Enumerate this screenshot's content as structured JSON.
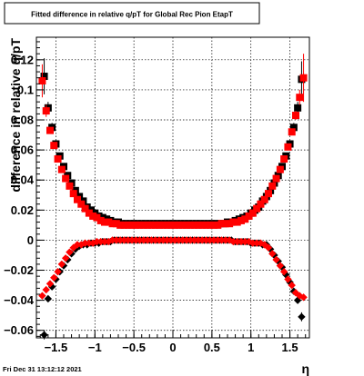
{
  "timestamp": "Fri Dec 31 13:12:12 2021",
  "colors": {
    "background": "#ffffff",
    "frame": "#000000",
    "grid": "#000000",
    "series_black": "#000000",
    "series_red": "#ff0000"
  },
  "chart_data": {
    "type": "scatter",
    "title": "Fitted difference in relative q/pT for Global Rec Pion EtapT",
    "xlabel": "η",
    "ylabel": "difference in relative q/pT",
    "xlim": [
      -1.75,
      1.75
    ],
    "ylim": [
      -0.065,
      0.135
    ],
    "grid": true,
    "legend": "none",
    "x_ticks": [
      {
        "value": -1.5,
        "label": "−1.5"
      },
      {
        "value": -1.0,
        "label": "−1"
      },
      {
        "value": -0.5,
        "label": "−0.5"
      },
      {
        "value": 0.0,
        "label": "0"
      },
      {
        "value": 0.5,
        "label": "0.5"
      },
      {
        "value": 1.0,
        "label": "1"
      },
      {
        "value": 1.5,
        "label": "1.5"
      }
    ],
    "y_ticks": [
      {
        "value": -0.06,
        "label": "−0.06"
      },
      {
        "value": -0.04,
        "label": "−0.04"
      },
      {
        "value": -0.02,
        "label": "−0.02"
      },
      {
        "value": 0.0,
        "label": "0"
      },
      {
        "value": 0.02,
        "label": "0.02"
      },
      {
        "value": 0.04,
        "label": "0.04"
      },
      {
        "value": 0.06,
        "label": "0.06"
      },
      {
        "value": 0.08,
        "label": "0.08"
      },
      {
        "value": 0.1,
        "label": "0.1"
      },
      {
        "value": 0.12,
        "label": "0.12"
      }
    ],
    "series": [
      {
        "group": "upper",
        "marker": "square",
        "color": "#000000",
        "x": [
          -1.65,
          -1.6,
          -1.55,
          -1.5,
          -1.45,
          -1.4,
          -1.35,
          -1.3,
          -1.25,
          -1.2,
          -1.15,
          -1.1,
          -1.05,
          -1.0,
          -0.95,
          -0.9,
          -0.85,
          -0.8,
          -0.75,
          -0.7,
          -0.65,
          -0.6,
          -0.55,
          -0.5,
          -0.45,
          -0.4,
          -0.35,
          -0.3,
          -0.25,
          -0.2,
          -0.15,
          -0.1,
          -0.05,
          0.0,
          0.05,
          0.1,
          0.15,
          0.2,
          0.25,
          0.3,
          0.35,
          0.4,
          0.45,
          0.5,
          0.55,
          0.6,
          0.65,
          0.7,
          0.75,
          0.8,
          0.85,
          0.9,
          0.95,
          1.0,
          1.05,
          1.1,
          1.15,
          1.2,
          1.25,
          1.3,
          1.35,
          1.4,
          1.45,
          1.5,
          1.55,
          1.6,
          1.65
        ],
        "y": [
          0.109,
          0.088,
          0.075,
          0.064,
          0.056,
          0.049,
          0.043,
          0.038,
          0.033,
          0.029,
          0.026,
          0.022,
          0.02,
          0.018,
          0.016,
          0.015,
          0.014,
          0.013,
          0.012,
          0.012,
          0.011,
          0.011,
          0.011,
          0.011,
          0.011,
          0.011,
          0.011,
          0.011,
          0.011,
          0.011,
          0.011,
          0.011,
          0.011,
          0.011,
          0.011,
          0.011,
          0.011,
          0.011,
          0.011,
          0.011,
          0.011,
          0.011,
          0.011,
          0.011,
          0.011,
          0.011,
          0.011,
          0.012,
          0.012,
          0.013,
          0.014,
          0.015,
          0.016,
          0.018,
          0.02,
          0.022,
          0.026,
          0.029,
          0.033,
          0.038,
          0.043,
          0.049,
          0.056,
          0.064,
          0.075,
          0.088,
          0.107
        ],
        "err": [
          0.012,
          0.004,
          0.003,
          0.002,
          0.001,
          0.001,
          0.001,
          0.001,
          0.001,
          0.001,
          0.001,
          0.001,
          0.001,
          0.001,
          0.001,
          0.001,
          0.001,
          0.001,
          0.001,
          0.001,
          0.001,
          0.001,
          0.001,
          0.001,
          0.001,
          0.001,
          0.001,
          0.001,
          0.001,
          0.001,
          0.001,
          0.001,
          0.001,
          0.001,
          0.001,
          0.001,
          0.001,
          0.001,
          0.001,
          0.001,
          0.001,
          0.001,
          0.001,
          0.001,
          0.001,
          0.001,
          0.001,
          0.001,
          0.001,
          0.001,
          0.001,
          0.001,
          0.001,
          0.001,
          0.001,
          0.001,
          0.001,
          0.001,
          0.001,
          0.001,
          0.001,
          0.001,
          0.001,
          0.002,
          0.003,
          0.004,
          0.012
        ]
      },
      {
        "group": "upper",
        "marker": "square",
        "color": "#ff0000",
        "x": [
          -1.675,
          -1.625,
          -1.575,
          -1.525,
          -1.475,
          -1.425,
          -1.375,
          -1.325,
          -1.275,
          -1.225,
          -1.175,
          -1.125,
          -1.075,
          -1.025,
          -0.975,
          -0.925,
          -0.875,
          -0.825,
          -0.775,
          -0.725,
          -0.675,
          -0.625,
          -0.575,
          -0.525,
          -0.475,
          -0.425,
          -0.375,
          -0.325,
          -0.275,
          -0.225,
          -0.175,
          -0.125,
          -0.075,
          -0.025,
          0.025,
          0.075,
          0.125,
          0.175,
          0.225,
          0.275,
          0.325,
          0.375,
          0.425,
          0.475,
          0.525,
          0.575,
          0.625,
          0.675,
          0.725,
          0.775,
          0.825,
          0.875,
          0.925,
          0.975,
          1.025,
          1.075,
          1.125,
          1.175,
          1.225,
          1.275,
          1.325,
          1.375,
          1.425,
          1.475,
          1.525,
          1.575,
          1.625,
          1.675
        ],
        "y": [
          0.106,
          0.086,
          0.073,
          0.063,
          0.054,
          0.047,
          0.041,
          0.036,
          0.031,
          0.027,
          0.024,
          0.021,
          0.018,
          0.016,
          0.015,
          0.013,
          0.012,
          0.012,
          0.011,
          0.011,
          0.01,
          0.01,
          0.01,
          0.01,
          0.01,
          0.01,
          0.01,
          0.01,
          0.01,
          0.01,
          0.01,
          0.01,
          0.01,
          0.01,
          0.01,
          0.01,
          0.01,
          0.01,
          0.01,
          0.01,
          0.01,
          0.01,
          0.01,
          0.01,
          0.01,
          0.01,
          0.011,
          0.011,
          0.011,
          0.012,
          0.012,
          0.013,
          0.014,
          0.016,
          0.018,
          0.021,
          0.024,
          0.027,
          0.031,
          0.036,
          0.041,
          0.047,
          0.054,
          0.062,
          0.072,
          0.083,
          0.095,
          0.108
        ],
        "err": [
          0.011,
          0.004,
          0.002,
          0.002,
          0.001,
          0.001,
          0.001,
          0.001,
          0.001,
          0.001,
          0.001,
          0.001,
          0.001,
          0.001,
          0.001,
          0.001,
          0.001,
          0.001,
          0.001,
          0.001,
          0.001,
          0.001,
          0.001,
          0.001,
          0.001,
          0.001,
          0.001,
          0.001,
          0.001,
          0.001,
          0.001,
          0.001,
          0.001,
          0.001,
          0.001,
          0.001,
          0.001,
          0.001,
          0.001,
          0.001,
          0.001,
          0.001,
          0.001,
          0.001,
          0.001,
          0.001,
          0.001,
          0.001,
          0.001,
          0.001,
          0.001,
          0.001,
          0.001,
          0.001,
          0.001,
          0.001,
          0.001,
          0.001,
          0.001,
          0.001,
          0.001,
          0.001,
          0.001,
          0.002,
          0.002,
          0.003,
          0.005,
          0.016
        ]
      },
      {
        "group": "lower",
        "marker": "diamond",
        "color": "#000000",
        "x": [
          -1.65,
          -1.6,
          -1.55,
          -1.5,
          -1.45,
          -1.4,
          -1.35,
          -1.3,
          -1.25,
          -1.2,
          -1.15,
          -1.1,
          -1.05,
          -1.0,
          -0.95,
          -0.9,
          -0.85,
          -0.8,
          -0.75,
          -0.7,
          -0.65,
          -0.6,
          -0.55,
          -0.5,
          -0.45,
          -0.4,
          -0.35,
          -0.3,
          -0.25,
          -0.2,
          -0.15,
          -0.1,
          -0.05,
          0.0,
          0.05,
          0.1,
          0.15,
          0.2,
          0.25,
          0.3,
          0.35,
          0.4,
          0.45,
          0.5,
          0.55,
          0.6,
          0.65,
          0.7,
          0.75,
          0.8,
          0.85,
          0.9,
          0.95,
          1.0,
          1.05,
          1.1,
          1.15,
          1.2,
          1.25,
          1.3,
          1.35,
          1.4,
          1.45,
          1.5,
          1.55,
          1.6,
          1.65
        ],
        "y": [
          -0.063,
          -0.039,
          -0.031,
          -0.026,
          -0.021,
          -0.017,
          -0.013,
          -0.009,
          -0.006,
          -0.004,
          -0.003,
          -0.003,
          -0.002,
          -0.002,
          -0.002,
          -0.001,
          -0.001,
          -0.001,
          0.0,
          0.0,
          0.0,
          0.0,
          0.0,
          0.0,
          0.0,
          0.0,
          0.0,
          0.0,
          0.0,
          0.0,
          0.0,
          0.0,
          0.0,
          0.0,
          0.0,
          0.0,
          0.0,
          0.0,
          0.0,
          0.0,
          0.0,
          0.0,
          0.0,
          0.0,
          0.0,
          0.0,
          0.0,
          0.0,
          0.0,
          -0.001,
          -0.001,
          -0.001,
          -0.001,
          -0.002,
          -0.002,
          -0.002,
          -0.003,
          -0.003,
          -0.006,
          -0.01,
          -0.014,
          -0.018,
          -0.023,
          -0.028,
          -0.034,
          -0.04,
          -0.051
        ],
        "err": [
          0.003,
          0.002,
          0.001,
          0.001,
          0.001,
          0.001,
          0.001,
          0.001,
          0.001,
          0.001,
          0.001,
          0.001,
          0.001,
          0.001,
          0.001,
          0.001,
          0.001,
          0.001,
          0.001,
          0.001,
          0.001,
          0.001,
          0.001,
          0.001,
          0.001,
          0.001,
          0.001,
          0.001,
          0.001,
          0.001,
          0.001,
          0.001,
          0.001,
          0.001,
          0.001,
          0.001,
          0.001,
          0.001,
          0.001,
          0.001,
          0.001,
          0.001,
          0.001,
          0.001,
          0.001,
          0.001,
          0.001,
          0.001,
          0.001,
          0.001,
          0.001,
          0.001,
          0.001,
          0.001,
          0.001,
          0.001,
          0.001,
          0.001,
          0.001,
          0.001,
          0.001,
          0.001,
          0.001,
          0.001,
          0.001,
          0.002,
          0.003
        ]
      },
      {
        "group": "lower",
        "marker": "diamond",
        "color": "#ff0000",
        "x": [
          -1.675,
          -1.625,
          -1.575,
          -1.525,
          -1.475,
          -1.425,
          -1.375,
          -1.325,
          -1.275,
          -1.225,
          -1.175,
          -1.125,
          -1.075,
          -1.025,
          -0.975,
          -0.925,
          -0.875,
          -0.825,
          -0.775,
          -0.725,
          -0.675,
          -0.625,
          -0.575,
          -0.525,
          -0.475,
          -0.425,
          -0.375,
          -0.325,
          -0.275,
          -0.225,
          -0.175,
          -0.125,
          -0.075,
          -0.025,
          0.025,
          0.075,
          0.125,
          0.175,
          0.225,
          0.275,
          0.325,
          0.375,
          0.425,
          0.475,
          0.525,
          0.575,
          0.625,
          0.675,
          0.725,
          0.775,
          0.825,
          0.875,
          0.925,
          0.975,
          1.025,
          1.075,
          1.125,
          1.175,
          1.225,
          1.275,
          1.325,
          1.375,
          1.425,
          1.475,
          1.525,
          1.575,
          1.625,
          1.675
        ],
        "y": [
          -0.037,
          -0.033,
          -0.029,
          -0.025,
          -0.021,
          -0.016,
          -0.012,
          -0.008,
          -0.005,
          -0.003,
          -0.003,
          -0.002,
          -0.002,
          -0.002,
          -0.001,
          -0.001,
          -0.001,
          -0.001,
          0.0,
          0.0,
          0.0,
          0.0,
          0.0,
          0.0,
          0.0,
          0.0,
          0.0,
          0.0,
          0.0,
          0.0,
          0.0,
          0.0,
          0.0,
          0.0,
          0.0,
          0.0,
          0.0,
          0.0,
          0.0,
          0.0,
          0.0,
          0.0,
          0.0,
          0.0,
          0.0,
          0.0,
          0.0,
          0.0,
          0.0,
          -0.001,
          -0.001,
          -0.001,
          -0.001,
          -0.001,
          -0.002,
          -0.002,
          -0.002,
          -0.003,
          -0.005,
          -0.009,
          -0.013,
          -0.017,
          -0.021,
          -0.026,
          -0.03,
          -0.035,
          -0.037,
          -0.038
        ],
        "err": [
          0.002,
          0.002,
          0.001,
          0.001,
          0.001,
          0.001,
          0.001,
          0.001,
          0.001,
          0.001,
          0.001,
          0.001,
          0.001,
          0.001,
          0.001,
          0.001,
          0.001,
          0.001,
          0.001,
          0.001,
          0.001,
          0.001,
          0.001,
          0.001,
          0.001,
          0.001,
          0.001,
          0.001,
          0.001,
          0.001,
          0.001,
          0.001,
          0.001,
          0.001,
          0.001,
          0.001,
          0.001,
          0.001,
          0.001,
          0.001,
          0.001,
          0.001,
          0.001,
          0.001,
          0.001,
          0.001,
          0.001,
          0.001,
          0.001,
          0.001,
          0.001,
          0.001,
          0.001,
          0.001,
          0.001,
          0.001,
          0.001,
          0.001,
          0.001,
          0.001,
          0.001,
          0.001,
          0.001,
          0.001,
          0.001,
          0.001,
          0.002,
          0.002
        ]
      }
    ]
  }
}
